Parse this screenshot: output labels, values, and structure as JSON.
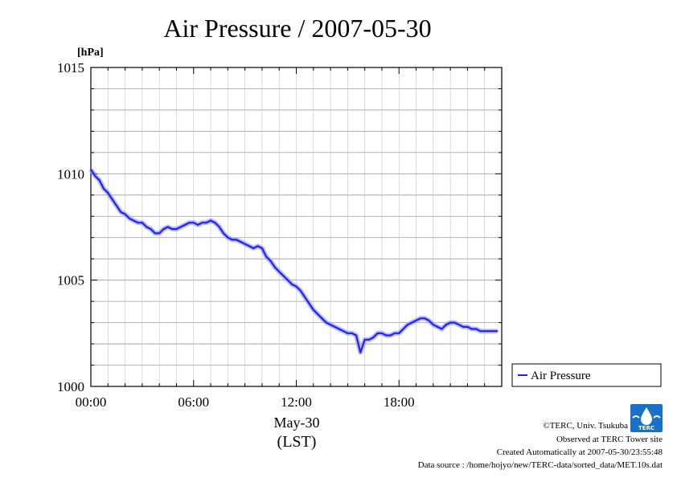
{
  "chart_data": {
    "type": "line",
    "title": "Air Pressure / 2007-05-30",
    "ylabel": "[hPa]",
    "ylim": [
      1000,
      1015
    ],
    "y_ticks": [
      1000,
      1005,
      1010,
      1015
    ],
    "y_tick_labels": [
      "1000",
      "1005",
      "1010",
      "1015"
    ],
    "xlim": [
      0,
      24
    ],
    "x_ticks": [
      0,
      6,
      12,
      18
    ],
    "x_tick_labels": [
      "00:00",
      "06:00",
      "12:00",
      "18:00"
    ],
    "date_label": "May-30",
    "time_zone_label": "(LST)",
    "grid": true,
    "legend_position": "right",
    "series": [
      {
        "name": "Air Pressure",
        "color": "#2222ee",
        "x": [
          0.0,
          0.25,
          0.5,
          0.75,
          1.0,
          1.25,
          1.5,
          1.75,
          2.0,
          2.25,
          2.5,
          2.75,
          3.0,
          3.25,
          3.5,
          3.75,
          4.0,
          4.25,
          4.5,
          4.75,
          5.0,
          5.25,
          5.5,
          5.75,
          6.0,
          6.25,
          6.5,
          6.75,
          7.0,
          7.25,
          7.5,
          7.75,
          8.0,
          8.25,
          8.5,
          8.75,
          9.0,
          9.25,
          9.5,
          9.75,
          10.0,
          10.25,
          10.5,
          10.75,
          11.0,
          11.25,
          11.5,
          11.75,
          12.0,
          12.25,
          12.5,
          12.75,
          13.0,
          13.25,
          13.5,
          13.75,
          14.0,
          14.25,
          14.5,
          14.75,
          15.0,
          15.25,
          15.5,
          15.75,
          16.0,
          16.25,
          16.5,
          16.75,
          17.0,
          17.25,
          17.5,
          17.75,
          18.0,
          18.25,
          18.5,
          18.75,
          19.0,
          19.25,
          19.5,
          19.75,
          20.0,
          20.25,
          20.5,
          20.75,
          21.0,
          21.25,
          21.5,
          21.75,
          22.0,
          22.25,
          22.5,
          22.75,
          23.0,
          23.25,
          23.5,
          23.75
        ],
        "values": [
          1010.2,
          1009.9,
          1009.7,
          1009.3,
          1009.1,
          1008.8,
          1008.5,
          1008.2,
          1008.1,
          1007.9,
          1007.8,
          1007.7,
          1007.7,
          1007.5,
          1007.4,
          1007.2,
          1007.2,
          1007.4,
          1007.5,
          1007.4,
          1007.4,
          1007.5,
          1007.6,
          1007.7,
          1007.7,
          1007.6,
          1007.7,
          1007.7,
          1007.8,
          1007.7,
          1007.5,
          1007.2,
          1007.0,
          1006.9,
          1006.9,
          1006.8,
          1006.7,
          1006.6,
          1006.5,
          1006.6,
          1006.5,
          1006.1,
          1005.9,
          1005.6,
          1005.4,
          1005.2,
          1005.0,
          1004.8,
          1004.7,
          1004.5,
          1004.2,
          1003.9,
          1003.6,
          1003.4,
          1003.2,
          1003.0,
          1002.9,
          1002.8,
          1002.7,
          1002.6,
          1002.5,
          1002.5,
          1002.4,
          1001.6,
          1002.2,
          1002.2,
          1002.3,
          1002.5,
          1002.5,
          1002.4,
          1002.4,
          1002.5,
          1002.5,
          1002.7,
          1002.9,
          1003.0,
          1003.1,
          1003.2,
          1003.2,
          1003.1,
          1002.9,
          1002.8,
          1002.7,
          1002.9,
          1003.0,
          1003.0,
          1002.9,
          1002.8,
          1002.8,
          1002.7,
          1002.7,
          1002.6,
          1002.6,
          1002.6,
          1002.6,
          1002.6
        ]
      }
    ]
  },
  "credits": {
    "copyright": "©TERC, Univ. Tsukuba",
    "observed": "Observed at TERC Tower site",
    "created": "Created Automatically at 2007-05-30/23:55:48",
    "source": "Data source : /home/hojyo/new/TERC-data/sorted_data/MET.10s.dat"
  },
  "logo": {
    "text": "TERC",
    "color": "#1a6fc9"
  }
}
